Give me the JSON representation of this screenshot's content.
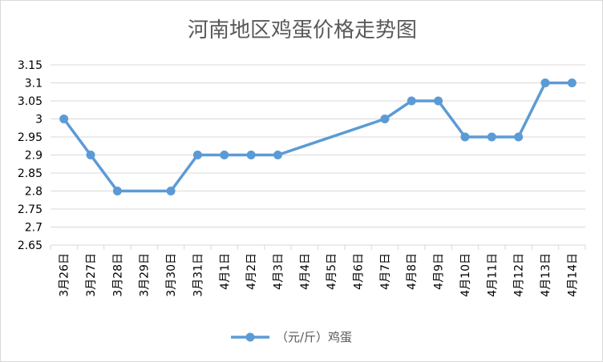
{
  "chart_data": {
    "type": "line",
    "title": "河南地区鸡蛋价格走势图",
    "xlabel": "",
    "ylabel": "",
    "categories": [
      "3月26日",
      "3月27日",
      "3月28日",
      "3月29日",
      "3月30日",
      "3月31日",
      "4月1日",
      "4月2日",
      "4月3日",
      "4月4日",
      "4月5日",
      "4月6日",
      "4月7日",
      "4月8日",
      "4月9日",
      "4月10日",
      "4月11日",
      "4月12日",
      "4月13日",
      "4月14日"
    ],
    "series": [
      {
        "name": "（元/斤）鸡蛋",
        "color": "#5b9bd5",
        "values": [
          3.0,
          2.9,
          2.8,
          null,
          2.8,
          2.9,
          2.9,
          2.9,
          2.9,
          null,
          null,
          null,
          3.0,
          3.05,
          3.05,
          2.95,
          2.95,
          2.95,
          3.1,
          3.1
        ]
      }
    ],
    "ylim": [
      2.65,
      3.15
    ],
    "yticks": [
      "3.15",
      "3.1",
      "3.05",
      "3",
      "2.95",
      "2.9",
      "2.85",
      "2.8",
      "2.75",
      "2.7",
      "2.65"
    ],
    "grid": true,
    "legend_position": "bottom"
  }
}
